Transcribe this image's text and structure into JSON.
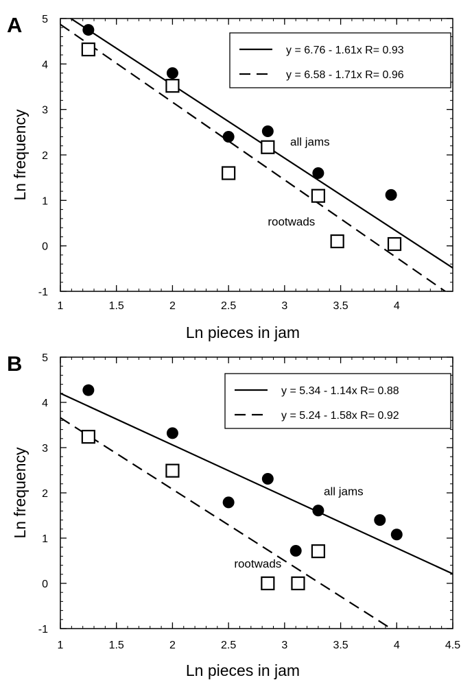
{
  "chart_data": [
    {
      "panel_label": "A",
      "type": "scatter",
      "xlabel": "Ln pieces in jam",
      "ylabel": "Ln frequency",
      "xlim": [
        1,
        4.5
      ],
      "ylim": [
        -1,
        5
      ],
      "xticks": [
        1,
        1.5,
        2,
        2.5,
        3,
        3.5,
        4
      ],
      "yticks": [
        -1,
        0,
        1,
        2,
        3,
        4,
        5
      ],
      "series": [
        {
          "name": "all jams",
          "marker": "filled-circle",
          "points": [
            {
              "x": 1.25,
              "y": 4.75
            },
            {
              "x": 2.0,
              "y": 3.8
            },
            {
              "x": 2.5,
              "y": 2.4
            },
            {
              "x": 2.85,
              "y": 2.52
            },
            {
              "x": 3.3,
              "y": 1.6
            },
            {
              "x": 3.95,
              "y": 1.12
            }
          ],
          "fit": {
            "intercept": 6.76,
            "slope": -1.61,
            "style": "solid",
            "legend": "y = 6.76 - 1.61x R= 0.93"
          }
        },
        {
          "name": "rootwads",
          "marker": "open-square",
          "points": [
            {
              "x": 1.25,
              "y": 4.32
            },
            {
              "x": 2.0,
              "y": 3.52
            },
            {
              "x": 2.5,
              "y": 1.6
            },
            {
              "x": 2.85,
              "y": 2.17
            },
            {
              "x": 3.3,
              "y": 1.1
            },
            {
              "x": 3.47,
              "y": 0.1
            },
            {
              "x": 3.98,
              "y": 0.04
            }
          ],
          "fit": {
            "intercept": 6.58,
            "slope": -1.71,
            "style": "dashed",
            "legend": "y = 6.58 - 1.71x R= 0.96"
          }
        }
      ],
      "annotations": [
        {
          "text": "all jams",
          "x": 3.05,
          "y": 2.2
        },
        {
          "text": "rootwads",
          "x": 2.85,
          "y": 0.45
        }
      ],
      "legend_position": "top-right"
    },
    {
      "panel_label": "B",
      "type": "scatter",
      "xlabel": "Ln pieces in jam",
      "ylabel": "Ln frequency",
      "xlim": [
        1,
        4.5
      ],
      "ylim": [
        -1,
        5
      ],
      "xticks": [
        1,
        1.5,
        2,
        2.5,
        3,
        3.5,
        4,
        4.5
      ],
      "yticks": [
        -1,
        0,
        1,
        2,
        3,
        4,
        5
      ],
      "series": [
        {
          "name": "all jams",
          "marker": "filled-circle",
          "points": [
            {
              "x": 1.25,
              "y": 4.27
            },
            {
              "x": 2.0,
              "y": 3.32
            },
            {
              "x": 2.5,
              "y": 1.79
            },
            {
              "x": 2.85,
              "y": 2.31
            },
            {
              "x": 3.1,
              "y": 0.72
            },
            {
              "x": 3.3,
              "y": 1.61
            },
            {
              "x": 3.85,
              "y": 1.4
            },
            {
              "x": 4.0,
              "y": 1.08
            }
          ],
          "fit": {
            "intercept": 5.34,
            "slope": -1.14,
            "style": "solid",
            "legend": "y = 5.34 - 1.14x R= 0.88"
          }
        },
        {
          "name": "rootwads",
          "marker": "open-square",
          "points": [
            {
              "x": 1.25,
              "y": 3.24
            },
            {
              "x": 2.0,
              "y": 2.49
            },
            {
              "x": 2.85,
              "y": 0.0
            },
            {
              "x": 3.12,
              "y": 0.0
            },
            {
              "x": 3.3,
              "y": 0.71
            }
          ],
          "fit": {
            "intercept": 5.24,
            "slope": -1.58,
            "style": "dashed",
            "legend": "y = 5.24 - 1.58x R= 0.92"
          }
        }
      ],
      "annotations": [
        {
          "text": "all jams",
          "x": 3.35,
          "y": 1.95
        },
        {
          "text": "rootwads",
          "x": 2.55,
          "y": 0.35
        }
      ],
      "legend_position": "top-right"
    }
  ]
}
